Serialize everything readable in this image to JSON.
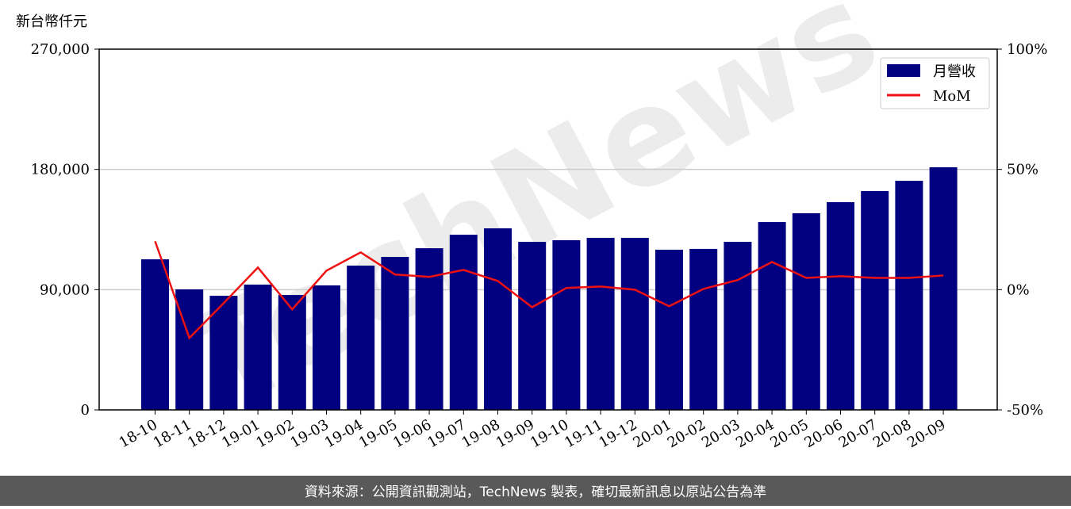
{
  "chart_data": {
    "type": "bar-line",
    "y_label": "新台幣仟元",
    "watermark": "TechNews",
    "footer": "資料來源：公開資訊觀測站，TechNews 製表，確切最新訊息以原站公告為準",
    "categories": [
      "18-10",
      "18-11",
      "18-12",
      "19-01",
      "19-02",
      "19-03",
      "19-04",
      "19-05",
      "19-06",
      "19-07",
      "19-08",
      "19-09",
      "19-10",
      "19-11",
      "19-12",
      "20-01",
      "20-02",
      "20-03",
      "20-04",
      "20-05",
      "20-06",
      "20-07",
      "20-08",
      "20-09"
    ],
    "series": [
      {
        "name": "月營收",
        "type": "bar",
        "color": "#000080",
        "values": [
          112700,
          90200,
          85400,
          93800,
          86000,
          93200,
          108000,
          114500,
          121000,
          131100,
          135900,
          125800,
          127000,
          128800,
          128800,
          119900,
          120500,
          125800,
          140600,
          147200,
          155500,
          163800,
          171500,
          181600
        ]
      },
      {
        "name": "MoM",
        "type": "line",
        "axis": "y2",
        "color": "#ee1111",
        "values": [
          20.1,
          -20.1,
          -5.6,
          9.2,
          -8.2,
          7.9,
          15.5,
          6.3,
          5.3,
          8.2,
          3.6,
          -7.3,
          0.7,
          1.3,
          0,
          -6.9,
          0.3,
          4.0,
          11.5,
          4.9,
          5.6,
          4.9,
          4.9,
          5.9
        ]
      }
    ],
    "ylim": [
      0,
      270000
    ],
    "yticks": [
      0,
      {
        "value": 90000,
        "label": "90,000"
      },
      {
        "value": 180000,
        "label": "180,000"
      },
      {
        "value": 270000,
        "label": "270,000"
      }
    ],
    "y2lim": [
      -50,
      100
    ],
    "y2ticks": [
      {
        "value": -50,
        "label": "-50%"
      },
      {
        "value": 0,
        "label": "0%"
      },
      {
        "value": 50,
        "label": "50%"
      },
      {
        "value": 100,
        "label": "100%"
      }
    ],
    "grid": true,
    "legend": "upper right"
  }
}
